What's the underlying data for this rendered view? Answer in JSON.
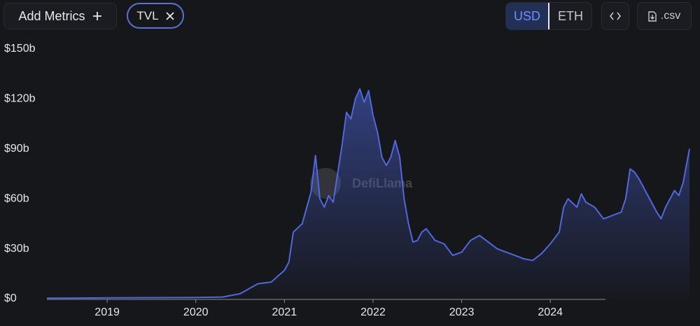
{
  "ui": {
    "add_metrics": "Add Metrics",
    "metric": "TVL",
    "currency_usd": "USD",
    "currency_eth": "ETH",
    "csv": ".csv",
    "watermark": "DefiLlama"
  },
  "chart_data": {
    "type": "area",
    "color": "#5068dc",
    "x": [
      2018.32,
      2019.0,
      2020.0,
      2020.3,
      2020.5,
      2020.6,
      2020.7,
      2020.85,
      2021.0,
      2021.05,
      2021.1,
      2021.2,
      2021.3,
      2021.35,
      2021.4,
      2021.45,
      2021.5,
      2021.55,
      2021.6,
      2021.65,
      2021.7,
      2021.75,
      2021.8,
      2021.85,
      2021.9,
      2021.95,
      2022.0,
      2022.05,
      2022.1,
      2022.15,
      2022.2,
      2022.25,
      2022.3,
      2022.35,
      2022.4,
      2022.45,
      2022.5,
      2022.55,
      2022.6,
      2022.7,
      2022.8,
      2022.9,
      2023.0,
      2023.1,
      2023.2,
      2023.3,
      2023.4,
      2023.5,
      2023.6,
      2023.7,
      2023.8,
      2023.9,
      2024.0,
      2024.1,
      2024.15,
      2024.2,
      2024.3,
      2024.35,
      2024.4,
      2024.5,
      2024.6,
      2024.7,
      2024.8,
      2024.85,
      2024.9,
      2024.95,
      2025.0,
      2025.1,
      2025.2,
      2025.25,
      2025.3,
      2025.4,
      2025.45,
      2025.5,
      2025.57
    ],
    "values": [
      0.3,
      0.5,
      0.7,
      1,
      3,
      6,
      9,
      10,
      17,
      22,
      40,
      45,
      64,
      86,
      60,
      55,
      62,
      58,
      75,
      92,
      112,
      108,
      120,
      126,
      118,
      125,
      110,
      100,
      85,
      80,
      85,
      95,
      85,
      60,
      45,
      34,
      35,
      40,
      42,
      35,
      33,
      26,
      28,
      35,
      38,
      34,
      30,
      28,
      26,
      24,
      23,
      27,
      33,
      40,
      55,
      60,
      55,
      63,
      58,
      55,
      48,
      50,
      52,
      60,
      78,
      76,
      72,
      62,
      52,
      48,
      55,
      65,
      62,
      70,
      90
    ],
    "xlim": [
      2018.32,
      2025.57
    ],
    "xticks": [
      2019,
      2020,
      2021,
      2022,
      2023,
      2024
    ],
    "ylim": [
      0,
      150
    ],
    "yticks": [
      {
        "value": 0,
        "label": "$0"
      },
      {
        "value": 30,
        "label": "$30b"
      },
      {
        "value": 60,
        "label": "$60b"
      },
      {
        "value": 90,
        "label": "$90b"
      },
      {
        "value": 120,
        "label": "$120b"
      },
      {
        "value": 150,
        "label": "$150b"
      }
    ]
  }
}
